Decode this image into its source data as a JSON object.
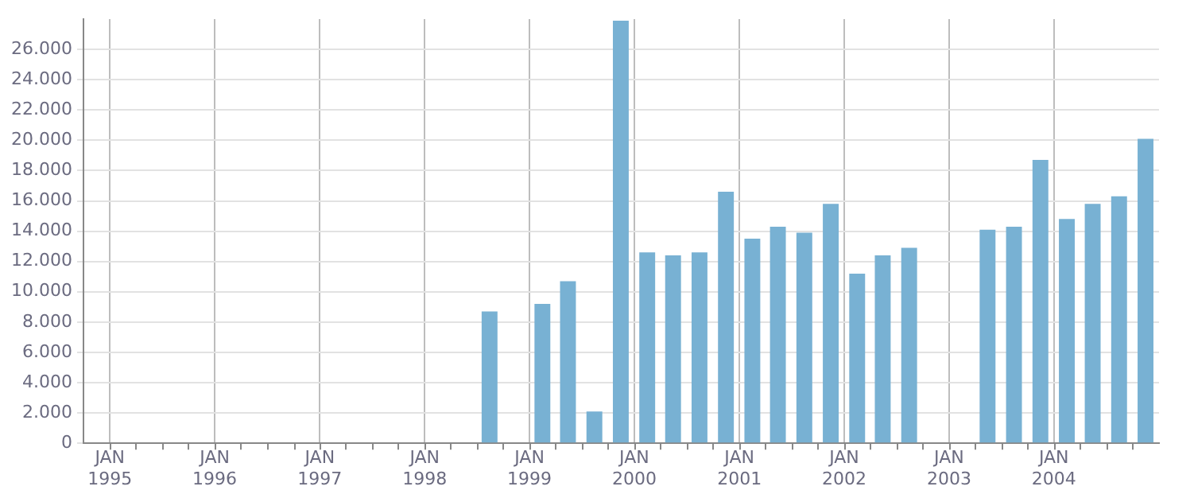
{
  "chart_data": {
    "type": "bar",
    "x": [
      "1998-08-15",
      "1998-11-15",
      "1999-02-15",
      "1999-05-15",
      "1999-08-15",
      "1999-11-15",
      "2000-02-15",
      "2000-05-15",
      "2000-08-15",
      "2000-11-15",
      "2001-02-15",
      "2001-05-15",
      "2001-08-15",
      "2001-11-15",
      "2002-02-15",
      "2002-05-15",
      "2002-08-15",
      "2002-11-15",
      "2003-02-15",
      "2003-05-15",
      "2003-08-15",
      "2003-11-15",
      "2004-02-15",
      "2004-05-15",
      "2004-08-15",
      "2004-11-15"
    ],
    "series": [
      {
        "color": "#78b1d3",
        "values": [
          8700,
          null,
          9200,
          10700,
          2100,
          27900,
          12600,
          12400,
          12600,
          16600,
          13500,
          14300,
          13900,
          15800,
          11200,
          12400,
          12900,
          null,
          null,
          14100,
          14300,
          18700,
          14800,
          15800,
          16300,
          20100
        ]
      }
    ],
    "xlim": [
      "1994-10",
      "2005"
    ],
    "xticks": [
      {
        "value": "1995",
        "label": "JAN\n1995"
      },
      {
        "value": "1995-04",
        "label": null
      },
      {
        "value": "1995-07",
        "label": null
      },
      {
        "value": "1995-10",
        "label": null
      },
      {
        "value": "1996",
        "label": "JAN\n1996"
      },
      {
        "value": "1996-04",
        "label": null
      },
      {
        "value": "1996-07",
        "label": null
      },
      {
        "value": "1996-10",
        "label": null
      },
      {
        "value": "1997",
        "label": "JAN\n1997"
      },
      {
        "value": "1997-04",
        "label": null
      },
      {
        "value": "1997-07",
        "label": null
      },
      {
        "value": "1997-10",
        "label": null
      },
      {
        "value": "1998",
        "label": "JAN\n1998"
      },
      {
        "value": "1998-04",
        "label": null
      },
      {
        "value": "1998-07",
        "label": null
      },
      {
        "value": "1998-10",
        "label": null
      },
      {
        "value": "1999",
        "label": "JAN\n1999"
      },
      {
        "value": "1999-04",
        "label": null
      },
      {
        "value": "1999-07",
        "label": null
      },
      {
        "value": "1999-10",
        "label": null
      },
      {
        "value": "2000",
        "label": "JAN\n2000"
      },
      {
        "value": "2000-04",
        "label": null
      },
      {
        "value": "2000-07",
        "label": null
      },
      {
        "value": "2000-10",
        "label": null
      },
      {
        "value": "2001",
        "label": "JAN\n2001"
      },
      {
        "value": "2001-04",
        "label": null
      },
      {
        "value": "2001-07",
        "label": null
      },
      {
        "value": "2001-10",
        "label": null
      },
      {
        "value": "2002",
        "label": "JAN\n2002"
      },
      {
        "value": "2002-04",
        "label": null
      },
      {
        "value": "2002-07",
        "label": null
      },
      {
        "value": "2002-10",
        "label": null
      },
      {
        "value": "2003",
        "label": "JAN\n2003"
      },
      {
        "value": "2003-04",
        "label": null
      },
      {
        "value": "2003-07",
        "label": null
      },
      {
        "value": "2003-10",
        "label": null
      },
      {
        "value": "2004",
        "label": "JAN\n2004"
      },
      {
        "value": "2004-04",
        "label": null
      },
      {
        "value": "2004-07",
        "label": null
      },
      {
        "value": "2004-10",
        "label": null
      }
    ],
    "ylim": [
      0,
      28000
    ],
    "yticks": [
      {
        "value": 0,
        "label": "0"
      },
      {
        "value": 2000,
        "label": "2.000"
      },
      {
        "value": 4000,
        "label": "4.000"
      },
      {
        "value": 6000,
        "label": "6.000"
      },
      {
        "value": 8000,
        "label": "8.000"
      },
      {
        "value": 10000,
        "label": "10.000"
      },
      {
        "value": 12000,
        "label": "12.000"
      },
      {
        "value": 14000,
        "label": "14.000"
      },
      {
        "value": 16000,
        "label": "16.000"
      },
      {
        "value": 18000,
        "label": "18.000"
      },
      {
        "value": 20000,
        "label": "20.000"
      },
      {
        "value": 22000,
        "label": "22.000"
      },
      {
        "value": 24000,
        "label": "24.000"
      },
      {
        "value": 26000,
        "label": "26.000"
      }
    ],
    "grid": true,
    "legend": false
  }
}
